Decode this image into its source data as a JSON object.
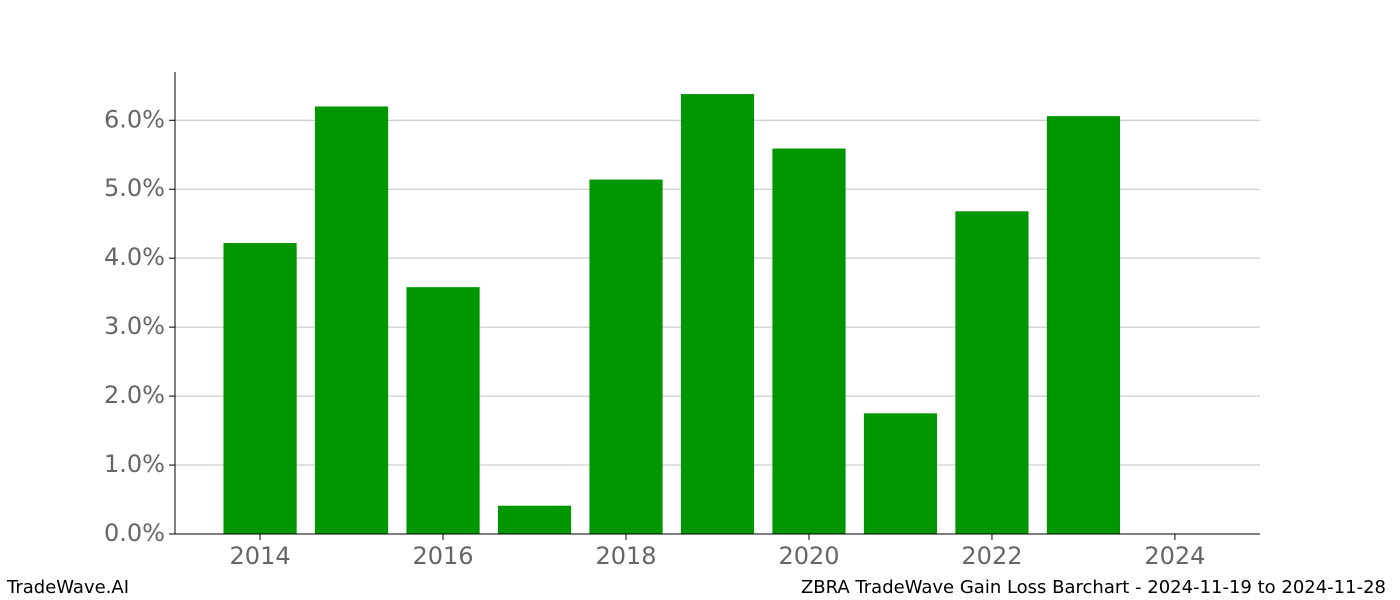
{
  "chart_data": {
    "type": "bar",
    "title": "ZBRA TradeWave Gain Loss Barchart - 2024-11-19 to 2024-11-28",
    "watermark": "TradeWave.AI",
    "x": [
      2014,
      2015,
      2016,
      2017,
      2018,
      2019,
      2020,
      2021,
      2022,
      2023
    ],
    "values": [
      4.22,
      6.2,
      3.58,
      0.41,
      5.14,
      6.38,
      5.59,
      1.75,
      4.68,
      6.06
    ],
    "color": "#009600",
    "xlim": [
      2013.07,
      2024.93
    ],
    "xticks": [
      2014,
      2016,
      2018,
      2020,
      2022,
      2024
    ],
    "ylim": [
      0,
      6.7
    ],
    "yticks": [
      {
        "value": 0,
        "label": "0.0%"
      },
      {
        "value": 1,
        "label": "1.0%"
      },
      {
        "value": 2,
        "label": "2.0%"
      },
      {
        "value": 3,
        "label": "3.0%"
      },
      {
        "value": 4,
        "label": "4.0%"
      },
      {
        "value": 5,
        "label": "5.0%"
      },
      {
        "value": 6,
        "label": "6.0%"
      }
    ],
    "grid": true
  }
}
